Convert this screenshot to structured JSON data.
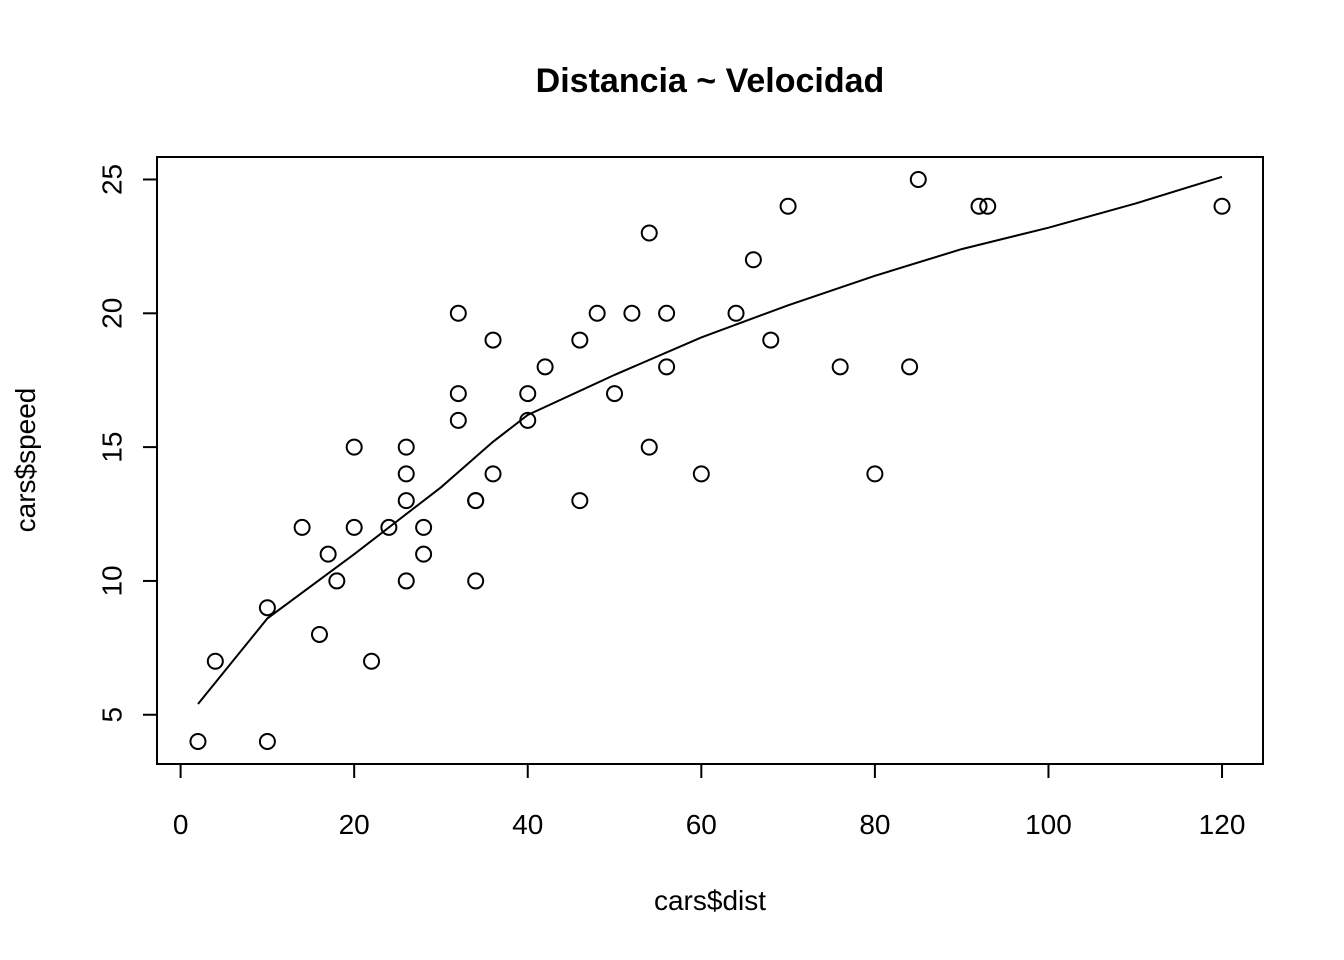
{
  "chart_data": {
    "type": "scatter",
    "title": "Distancia ~ Velocidad",
    "xlabel": "cars$dist",
    "ylabel": "cars$speed",
    "xlim": [
      -2.72,
      124.72
    ],
    "ylim": [
      3.16,
      25.84
    ],
    "xticks": [
      0,
      20,
      40,
      60,
      80,
      100,
      120
    ],
    "yticks": [
      5,
      10,
      15,
      20,
      25
    ],
    "grid": false,
    "legend": "none",
    "points": [
      [
        2,
        4
      ],
      [
        10,
        4
      ],
      [
        4,
        7
      ],
      [
        22,
        7
      ],
      [
        16,
        8
      ],
      [
        10,
        9
      ],
      [
        18,
        10
      ],
      [
        26,
        10
      ],
      [
        34,
        10
      ],
      [
        17,
        11
      ],
      [
        28,
        11
      ],
      [
        14,
        12
      ],
      [
        20,
        12
      ],
      [
        24,
        12
      ],
      [
        28,
        12
      ],
      [
        26,
        13
      ],
      [
        34,
        13
      ],
      [
        34,
        13
      ],
      [
        46,
        13
      ],
      [
        26,
        14
      ],
      [
        36,
        14
      ],
      [
        60,
        14
      ],
      [
        80,
        14
      ],
      [
        20,
        15
      ],
      [
        26,
        15
      ],
      [
        54,
        15
      ],
      [
        32,
        16
      ],
      [
        40,
        16
      ],
      [
        32,
        17
      ],
      [
        40,
        17
      ],
      [
        50,
        17
      ],
      [
        42,
        18
      ],
      [
        56,
        18
      ],
      [
        76,
        18
      ],
      [
        84,
        18
      ],
      [
        36,
        19
      ],
      [
        46,
        19
      ],
      [
        68,
        19
      ],
      [
        32,
        20
      ],
      [
        48,
        20
      ],
      [
        52,
        20
      ],
      [
        56,
        20
      ],
      [
        64,
        20
      ],
      [
        66,
        22
      ],
      [
        54,
        23
      ],
      [
        70,
        24
      ],
      [
        92,
        24
      ],
      [
        93,
        24
      ],
      [
        120,
        24
      ],
      [
        85,
        25
      ]
    ],
    "smooth_line": [
      [
        2,
        5.4
      ],
      [
        10,
        8.6
      ],
      [
        20,
        11.0
      ],
      [
        30,
        13.5
      ],
      [
        36,
        15.2
      ],
      [
        40,
        16.2
      ],
      [
        50,
        17.7
      ],
      [
        60,
        19.1
      ],
      [
        70,
        20.3
      ],
      [
        80,
        21.4
      ],
      [
        90,
        22.4
      ],
      [
        100,
        23.2
      ],
      [
        110,
        24.1
      ],
      [
        120,
        25.1
      ]
    ]
  }
}
